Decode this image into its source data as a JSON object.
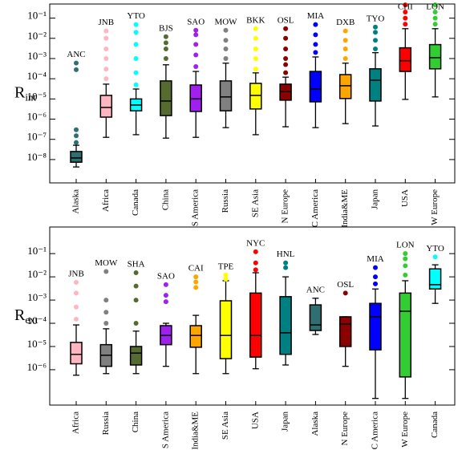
{
  "chart_data": [
    {
      "type": "box",
      "ylabel": "R",
      "ylabel_sub": "int",
      "log_y": true,
      "ylim": [
        7e-10,
        0.5
      ],
      "yticks": [
        {
          "value": 1e-08,
          "label": "10⁻⁸"
        },
        {
          "value": 1e-07,
          "label": "10⁻⁷"
        },
        {
          "value": 1e-06,
          "label": "10⁻⁶"
        },
        {
          "value": 1e-05,
          "label": "10⁻⁵"
        },
        {
          "value": 0.0001,
          "label": "10⁻⁴"
        },
        {
          "value": 0.001,
          "label": "10⁻³"
        },
        {
          "value": 0.01,
          "label": "10⁻²"
        },
        {
          "value": 0.1,
          "label": "10⁻¹"
        }
      ],
      "categories": [
        "Alaska",
        "Africa",
        "Canada",
        "China",
        "S America",
        "Russia",
        "SE Asia",
        "N Europe",
        "C America",
        "India&ME",
        "Japan",
        "USA",
        "W Europe"
      ],
      "annotations": [
        "ANC",
        "JNB",
        "YTO",
        "BJS",
        "SAO",
        "MOW",
        "BKK",
        "OSL",
        "MIA",
        "DXB",
        "TYO",
        "CHI",
        "LON"
      ],
      "colors": [
        "#2f6f6f",
        "#ffb6c1",
        "#00ffff",
        "#556b2f",
        "#a020f0",
        "#808080",
        "#ffff00",
        "#8b0000",
        "#0000ff",
        "#ffa500",
        "#008080",
        "#ff0000",
        "#32cd32"
      ],
      "whislo": [
        4.3e-09,
        1.26e-07,
        1.7e-07,
        1.15e-07,
        1.26e-07,
        3.8e-07,
        1.7e-07,
        4.2e-07,
        3.8e-07,
        6e-07,
        4.6e-07,
        9.5e-06,
        1.26e-05
      ],
      "q1": [
        7.4e-09,
        1.26e-06,
        2.6e-06,
        1.5e-06,
        2.4e-06,
        2.6e-06,
        3.2e-06,
        8.7e-06,
        7.2e-06,
        1.05e-05,
        7.9e-06,
        0.00023,
        0.00031
      ],
      "med": [
        1.2e-08,
        3.8e-06,
        5e-06,
        7.9e-06,
        1e-05,
        1.26e-05,
        1.5e-05,
        2.3e-05,
        3.1e-05,
        4.5e-05,
        8.5e-05,
        0.00078,
        0.0011
      ],
      "q3": [
        2.5e-08,
        1.5e-05,
        1e-05,
        7.8e-05,
        4.9e-05,
        7.8e-05,
        5.9e-05,
        5.4e-05,
        0.00023,
        0.00016,
        0.00031,
        0.0034,
        0.0049
      ],
      "whishi": [
        5.1e-08,
        5.4e-05,
        3.1e-05,
        0.00049,
        0.00023,
        0.00059,
        0.000195,
        0.00012,
        0.0012,
        0.00059,
        0.00195,
        0.03,
        0.03
      ],
      "outliers": [
        [
          7e-08,
          1.5e-07,
          3e-07,
          0.00028,
          0.0006
        ],
        [
          0.0001,
          0.0003,
          0.001,
          0.003,
          0.01,
          0.023
        ],
        [
          5e-05,
          0.0002,
          0.001,
          0.005,
          0.02,
          0.048
        ],
        [
          0.001,
          0.003,
          0.006,
          0.012
        ],
        [
          0.0004,
          0.0015,
          0.005,
          0.015,
          0.025
        ],
        [
          0.001,
          0.003,
          0.008,
          0.025
        ],
        [
          0.0003,
          0.001,
          0.003,
          0.01,
          0.03
        ],
        [
          0.0002,
          0.0005,
          0.001,
          0.003,
          0.01,
          0.03
        ],
        [
          0.002,
          0.005,
          0.015,
          0.048
        ],
        [
          0.001,
          0.003,
          0.008,
          0.023
        ],
        [
          0.003,
          0.008,
          0.02,
          0.036
        ],
        [
          0.05,
          0.1,
          0.2,
          0.45
        ],
        [
          0.05,
          0.1,
          0.2,
          0.45
        ]
      ]
    },
    {
      "type": "box",
      "ylabel": "R",
      "ylabel_sub": "ext",
      "log_y": true,
      "ylim": [
        3e-08,
        1.4
      ],
      "yticks": [
        {
          "value": 1e-06,
          "label": "10⁻⁶"
        },
        {
          "value": 1e-05,
          "label": "10⁻⁵"
        },
        {
          "value": 0.0001,
          "label": "10⁻⁴"
        },
        {
          "value": 0.001,
          "label": "10⁻³"
        },
        {
          "value": 0.01,
          "label": "10⁻²"
        },
        {
          "value": 0.1,
          "label": "10⁻¹"
        }
      ],
      "categories": [
        "Africa",
        "Russia",
        "China",
        "S America",
        "India&ME",
        "SE Asia",
        "USA",
        "Japan",
        "Alaska",
        "N Europe",
        "C America",
        "W Europe",
        "Canada"
      ],
      "annotations": [
        "JNB",
        "MOW",
        "SHA",
        "SAO",
        "CAI",
        "TPE",
        "NYC",
        "HNL",
        "ANC",
        "OSL",
        "MIA",
        "LON",
        "YTO"
      ],
      "colors": [
        "#ffb6c1",
        "#808080",
        "#556b2f",
        "#a020f0",
        "#ffa500",
        "#ffff00",
        "#ff0000",
        "#008080",
        "#2f6f6f",
        "#8b0000",
        "#0000ff",
        "#32cd32",
        "#00ffff"
      ],
      "whislo": [
        5.8e-07,
        6.8e-07,
        6.8e-07,
        1.4e-06,
        6.8e-07,
        6.8e-07,
        1.1e-06,
        1.6e-06,
        3.3e-05,
        1.4e-06,
        5.8e-08,
        5.8e-08,
        0.00072
      ],
      "q1": [
        1.8e-06,
        1.4e-06,
        1.6e-06,
        1.2e-05,
        9.3e-06,
        3e-06,
        3.5e-06,
        4.6e-06,
        4.9e-05,
        1e-05,
        7.2e-06,
        4.9e-07,
        0.003
      ],
      "med": [
        4.6e-06,
        4.2e-06,
        5.2e-06,
        3e-05,
        3e-05,
        3e-05,
        3e-05,
        3.9e-05,
        8.5e-05,
        9.3e-05,
        0.00019,
        0.00033,
        0.0046
      ],
      "q3": [
        1.5e-05,
        1.2e-05,
        1e-05,
        7.9e-05,
        7.9e-05,
        0.00093,
        0.002,
        0.0014,
        0.00062,
        0.00019,
        0.00072,
        0.002,
        0.022
      ],
      "whishi": [
        8.5e-05,
        5.8e-05,
        4.6e-05,
        0.0001,
        0.00022,
        0.0068,
        0.015,
        0.01,
        0.0012,
        0.00019,
        0.003,
        0.0068,
        0.033
      ],
      "outliers": [
        [
          0.00015,
          0.0005,
          0.002,
          0.0058
        ],
        [
          0.0001,
          0.0003,
          0.001,
          0.017
        ],
        [
          0.0001,
          0.001,
          0.004,
          0.015
        ],
        [
          0.00085,
          0.0016,
          0.0046
        ],
        [
          0.0035,
          0.006,
          0.01
        ],
        [
          0.008,
          0.012
        ],
        [
          0.02,
          0.04,
          0.12
        ],
        [
          0.025,
          0.04
        ],
        [],
        [
          0.002
        ],
        [
          0.005,
          0.01,
          0.025
        ],
        [
          0.012,
          0.03,
          0.06,
          0.1
        ],
        [
          0.072
        ]
      ]
    }
  ]
}
